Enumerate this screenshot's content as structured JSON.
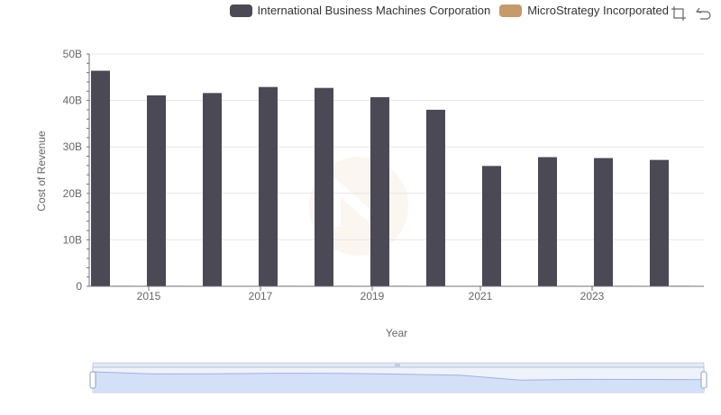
{
  "legend": {
    "series1": "International Business Machines Corporation",
    "series2": "MicroStrategy Incorporated"
  },
  "toolbox": {
    "zoom_icon": "data-zoom-icon",
    "restore_icon": "restore-icon"
  },
  "colors": {
    "series1": "#4a4954",
    "series2": "#c59a6d",
    "grid": "#e6e6e6",
    "axis": "#6e7079",
    "slider_fill": "#d3e0f8",
    "slider_border": "#acb8d1"
  },
  "chart_data": {
    "type": "bar",
    "title": "",
    "xlabel": "Year",
    "ylabel": "Cost of Revenue",
    "ylim": [
      0,
      50000000000
    ],
    "yticks": [
      "0",
      "10B",
      "20B",
      "30B",
      "40B",
      "50B"
    ],
    "categories": [
      "2014",
      "2015",
      "2016",
      "2017",
      "2018",
      "2019",
      "2020",
      "2021",
      "2022",
      "2023",
      "2024"
    ],
    "xtick_labels": [
      "2015",
      "2017",
      "2019",
      "2021",
      "2023"
    ],
    "series": [
      {
        "name": "International Business Machines Corporation",
        "values": [
          46400000000,
          41100000000,
          41600000000,
          42900000000,
          42700000000,
          40700000000,
          38000000000,
          25900000000,
          27800000000,
          27600000000,
          27200000000
        ]
      },
      {
        "name": "MicroStrategy Incorporated",
        "values": [
          110000000,
          100000000,
          95000000,
          100000000,
          100000000,
          100000000,
          90000000,
          90000000,
          100000000,
          110000000,
          120000000
        ]
      }
    ]
  }
}
